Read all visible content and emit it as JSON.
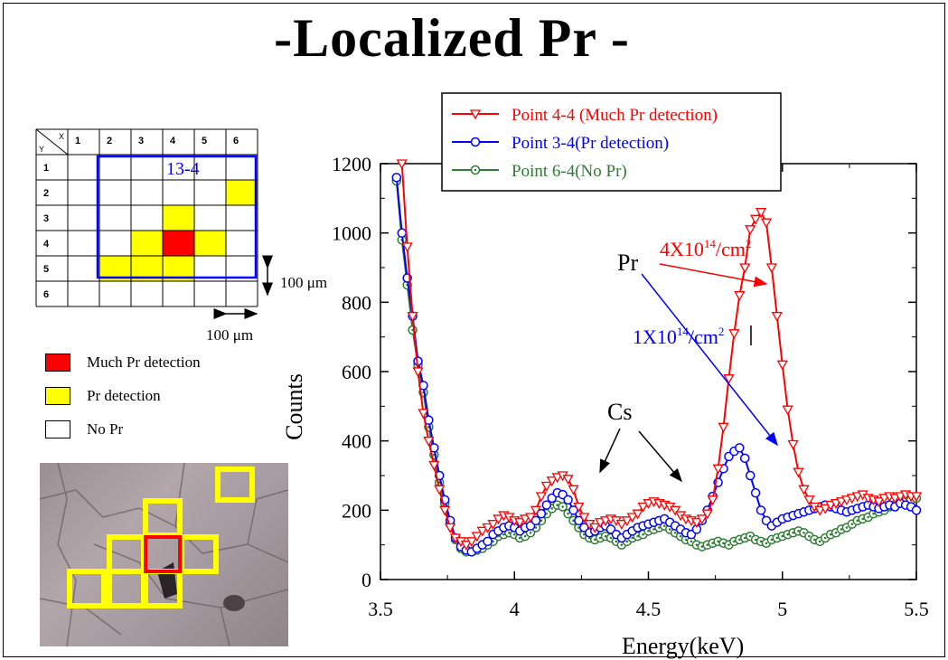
{
  "title": "-Localized Pr -",
  "sample_map": {
    "corner_x": "X",
    "corner_y": "Y",
    "columns": [
      "1",
      "2",
      "3",
      "4",
      "5",
      "6"
    ],
    "rows": [
      "1",
      "2",
      "3",
      "4",
      "5",
      "6"
    ],
    "region_label": "13-4",
    "scale_v": "100 μm",
    "scale_h": "100 μm",
    "much_pr_cells": [
      [
        4,
        4
      ]
    ],
    "pr_cells": [
      [
        6,
        2
      ],
      [
        4,
        3
      ],
      [
        3,
        4
      ],
      [
        5,
        4
      ],
      [
        2,
        5
      ],
      [
        3,
        5
      ],
      [
        4,
        5
      ]
    ]
  },
  "legend_boxes": [
    {
      "label": "Much Pr detection",
      "color": "#ff0000"
    },
    {
      "label": "Pr detection",
      "color": "#ffff00"
    },
    {
      "label": "No Pr",
      "color": "#ffffff"
    }
  ],
  "chart_data": {
    "type": "line",
    "xlabel": "Energy(keV)",
    "ylabel": "Counts",
    "xlim": [
      3.5,
      5.5
    ],
    "ylim": [
      0,
      1200
    ],
    "xticks": [
      3.5,
      4,
      4.5,
      5,
      5.5
    ],
    "xtick_labels": [
      "3.5",
      "4",
      "4.5",
      "5",
      "5.5"
    ],
    "yticks": [
      0,
      200,
      400,
      600,
      800,
      1000,
      1200
    ],
    "ytick_labels": [
      "0",
      "200",
      "400",
      "600",
      "800",
      "1000",
      "1200"
    ],
    "series": [
      {
        "name": "Point 4-4 (Much Pr detection)",
        "color": "#ff0000",
        "marker": "triangle-down",
        "x": [
          3.58,
          3.6,
          3.62,
          3.64,
          3.66,
          3.68,
          3.7,
          3.72,
          3.74,
          3.76,
          3.78,
          3.8,
          3.82,
          3.84,
          3.86,
          3.88,
          3.9,
          3.92,
          3.94,
          3.96,
          3.98,
          4.0,
          4.02,
          4.04,
          4.06,
          4.08,
          4.1,
          4.12,
          4.14,
          4.16,
          4.18,
          4.2,
          4.22,
          4.24,
          4.26,
          4.28,
          4.3,
          4.32,
          4.34,
          4.36,
          4.38,
          4.4,
          4.42,
          4.44,
          4.46,
          4.48,
          4.5,
          4.52,
          4.54,
          4.56,
          4.58,
          4.6,
          4.62,
          4.64,
          4.66,
          4.68,
          4.7,
          4.72,
          4.74,
          4.76,
          4.78,
          4.8,
          4.82,
          4.84,
          4.86,
          4.88,
          4.9,
          4.92,
          4.94,
          4.96,
          4.98,
          5.0,
          5.02,
          5.04,
          5.06,
          5.08,
          5.1,
          5.12,
          5.14,
          5.16,
          5.18,
          5.2,
          5.22,
          5.24,
          5.26,
          5.28,
          5.3,
          5.32,
          5.34,
          5.36,
          5.38,
          5.4,
          5.42,
          5.44,
          5.46,
          5.48,
          5.5
        ],
        "y": [
          1200,
          960,
          760,
          600,
          480,
          400,
          330,
          260,
          200,
          150,
          120,
          110,
          100,
          110,
          125,
          140,
          150,
          160,
          175,
          185,
          180,
          170,
          165,
          175,
          180,
          200,
          240,
          270,
          285,
          295,
          300,
          290,
          260,
          210,
          180,
          160,
          150,
          165,
          170,
          175,
          170,
          160,
          170,
          180,
          190,
          210,
          220,
          225,
          220,
          215,
          210,
          200,
          185,
          175,
          170,
          165,
          175,
          190,
          230,
          320,
          440,
          580,
          710,
          820,
          900,
          1010,
          1040,
          1060,
          1030,
          900,
          760,
          620,
          490,
          390,
          310,
          260,
          230,
          210,
          200,
          205,
          215,
          220,
          225,
          230,
          235,
          240,
          245,
          235,
          230,
          225,
          235,
          240,
          235,
          240,
          245,
          240,
          240
        ]
      },
      {
        "name": "Point 3-4(Pr detection)",
        "color": "#0000ff",
        "marker": "circle",
        "x": [
          3.56,
          3.58,
          3.6,
          3.62,
          3.64,
          3.66,
          3.68,
          3.7,
          3.72,
          3.74,
          3.76,
          3.78,
          3.8,
          3.82,
          3.84,
          3.86,
          3.88,
          3.9,
          3.92,
          3.94,
          3.96,
          3.98,
          4.0,
          4.02,
          4.04,
          4.06,
          4.08,
          4.1,
          4.12,
          4.14,
          4.16,
          4.18,
          4.2,
          4.22,
          4.24,
          4.26,
          4.28,
          4.3,
          4.32,
          4.34,
          4.36,
          4.38,
          4.4,
          4.42,
          4.44,
          4.46,
          4.48,
          4.5,
          4.52,
          4.54,
          4.56,
          4.58,
          4.6,
          4.62,
          4.64,
          4.66,
          4.68,
          4.7,
          4.72,
          4.74,
          4.76,
          4.78,
          4.8,
          4.82,
          4.84,
          4.86,
          4.88,
          4.9,
          4.92,
          4.94,
          4.96,
          4.98,
          5.0,
          5.02,
          5.04,
          5.06,
          5.08,
          5.1,
          5.12,
          5.14,
          5.16,
          5.18,
          5.2,
          5.22,
          5.24,
          5.26,
          5.28,
          5.3,
          5.32,
          5.34,
          5.36,
          5.38,
          5.4,
          5.42,
          5.44,
          5.46,
          5.48,
          5.5
        ],
        "y": [
          1160,
          1000,
          870,
          760,
          630,
          560,
          460,
          380,
          300,
          230,
          170,
          120,
          95,
          85,
          80,
          90,
          100,
          110,
          130,
          140,
          150,
          155,
          150,
          140,
          150,
          155,
          170,
          190,
          215,
          235,
          250,
          245,
          230,
          200,
          170,
          150,
          135,
          140,
          150,
          155,
          145,
          130,
          120,
          130,
          140,
          150,
          155,
          160,
          165,
          170,
          175,
          165,
          155,
          145,
          135,
          130,
          145,
          170,
          200,
          240,
          280,
          320,
          355,
          370,
          380,
          350,
          300,
          250,
          200,
          170,
          155,
          165,
          175,
          180,
          185,
          190,
          195,
          200,
          205,
          210,
          215,
          210,
          205,
          200,
          195,
          200,
          205,
          210,
          215,
          210,
          205,
          210,
          215,
          210,
          220,
          215,
          210,
          200
        ]
      },
      {
        "name": "Point 6-4(No Pr)",
        "color": "#2e7d32",
        "marker": "circle-dot",
        "x": [
          3.56,
          3.58,
          3.6,
          3.62,
          3.64,
          3.66,
          3.68,
          3.7,
          3.72,
          3.74,
          3.76,
          3.78,
          3.8,
          3.82,
          3.84,
          3.86,
          3.88,
          3.9,
          3.92,
          3.94,
          3.96,
          3.98,
          4.0,
          4.02,
          4.04,
          4.06,
          4.08,
          4.1,
          4.12,
          4.14,
          4.16,
          4.18,
          4.2,
          4.22,
          4.24,
          4.26,
          4.28,
          4.3,
          4.32,
          4.34,
          4.36,
          4.38,
          4.4,
          4.42,
          4.44,
          4.46,
          4.48,
          4.5,
          4.52,
          4.54,
          4.56,
          4.58,
          4.6,
          4.62,
          4.64,
          4.66,
          4.68,
          4.7,
          4.72,
          4.74,
          4.76,
          4.78,
          4.8,
          4.82,
          4.84,
          4.86,
          4.88,
          4.9,
          4.92,
          4.94,
          4.96,
          4.98,
          5.0,
          5.02,
          5.04,
          5.06,
          5.08,
          5.1,
          5.12,
          5.14,
          5.16,
          5.18,
          5.2,
          5.22,
          5.24,
          5.26,
          5.28,
          5.3,
          5.32,
          5.34,
          5.36,
          5.38,
          5.4,
          5.42,
          5.44,
          5.46,
          5.48,
          5.5
        ],
        "y": [
          1150,
          980,
          850,
          720,
          620,
          540,
          440,
          360,
          280,
          220,
          160,
          115,
          90,
          80,
          80,
          85,
          90,
          100,
          110,
          125,
          130,
          135,
          130,
          120,
          125,
          135,
          150,
          170,
          190,
          205,
          215,
          210,
          190,
          170,
          150,
          130,
          120,
          115,
          120,
          125,
          120,
          110,
          100,
          110,
          120,
          125,
          130,
          140,
          145,
          150,
          155,
          145,
          135,
          125,
          115,
          110,
          100,
          95,
          100,
          105,
          110,
          105,
          100,
          110,
          115,
          120,
          125,
          115,
          110,
          105,
          115,
          120,
          125,
          130,
          135,
          140,
          135,
          125,
          115,
          110,
          120,
          130,
          135,
          145,
          150,
          160,
          170,
          175,
          180,
          190,
          195,
          200,
          210,
          215,
          220,
          225,
          230,
          235
        ]
      }
    ],
    "annotations": {
      "pr_label": "Pr",
      "cs_label": "Cs",
      "red_dose": "4X10",
      "red_exp": "14",
      "red_unit": "/cm",
      "red_unit_exp": "2",
      "blue_dose": "1X10",
      "blue_exp": "14",
      "blue_unit": "/cm",
      "blue_unit_exp": "2"
    }
  }
}
